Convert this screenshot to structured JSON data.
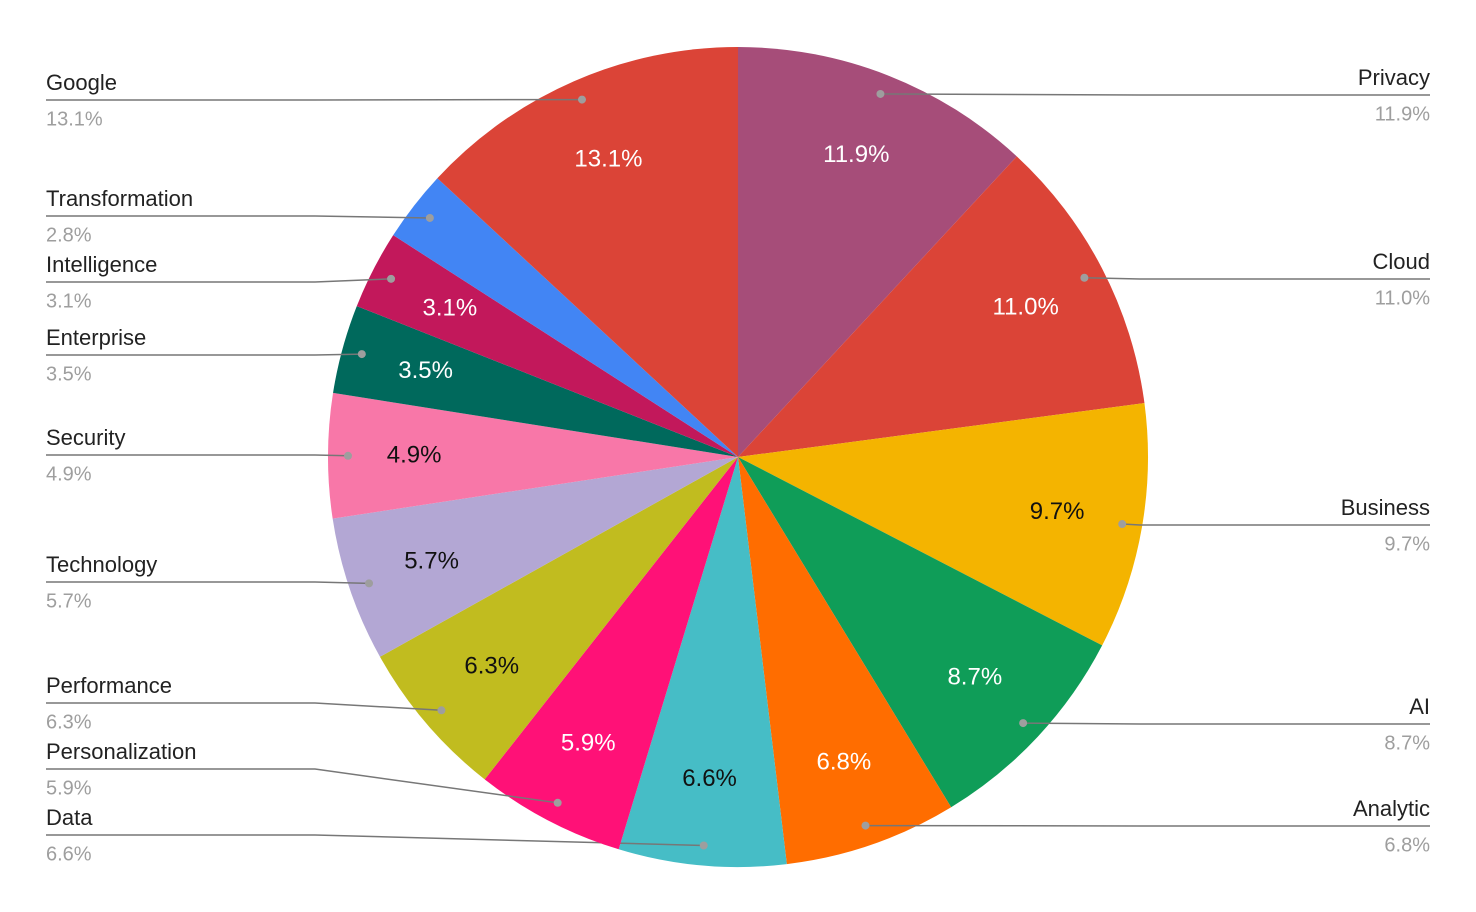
{
  "chart_data": {
    "type": "pie",
    "categories": [
      "Privacy",
      "Cloud",
      "Business",
      "AI",
      "Analytic",
      "Data",
      "Personalization",
      "Performance",
      "Technology",
      "Security",
      "Enterprise",
      "Intelligence",
      "Transformation",
      "Google"
    ],
    "values": [
      11.9,
      11.0,
      9.7,
      8.7,
      6.8,
      6.6,
      5.9,
      6.3,
      5.7,
      4.9,
      3.5,
      3.1,
      2.8,
      13.1
    ],
    "value_labels": [
      "11.9%",
      "11.0%",
      "9.7%",
      "8.7%",
      "6.8%",
      "6.6%",
      "5.9%",
      "6.3%",
      "5.7%",
      "4.9%",
      "3.5%",
      "3.1%",
      "2.8%",
      "13.1%"
    ],
    "colors": [
      "#a64d79",
      "#db4437",
      "#f4b400",
      "#0f9d58",
      "#ff6d00",
      "#46bdc6",
      "#ff1177",
      "#c1bc1f",
      "#b3a7d4",
      "#f877a8",
      "#00695c",
      "#c2185b",
      "#4285f4",
      "#db4437"
    ]
  }
}
